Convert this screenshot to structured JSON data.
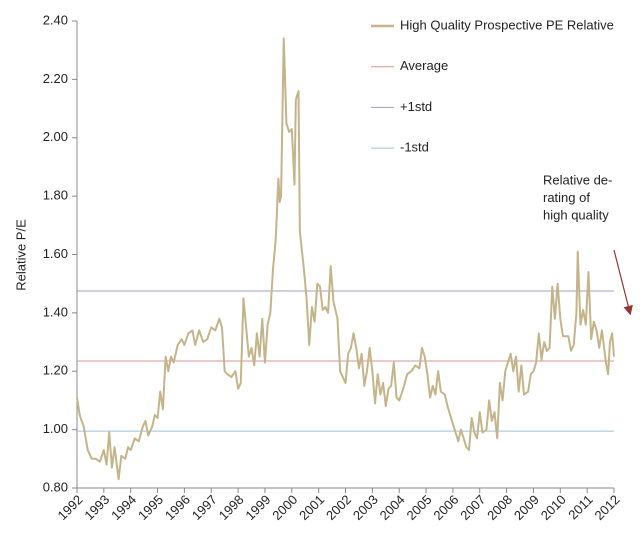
{
  "chart_data": {
    "type": "line",
    "y_label": "Relative P/E",
    "xlim": [
      1992,
      2012
    ],
    "xticks": [
      1992,
      1993,
      1994,
      1995,
      1996,
      1997,
      1998,
      1999,
      2000,
      2001,
      2002,
      2003,
      2004,
      2005,
      2006,
      2007,
      2008,
      2009,
      2010,
      2011,
      2012
    ],
    "ylim": [
      0.8,
      2.4
    ],
    "yticks": [
      {
        "value": 0.8,
        "label": "0.80"
      },
      {
        "value": 1.0,
        "label": "1.00"
      },
      {
        "value": 1.2,
        "label": "1.20"
      },
      {
        "value": 1.4,
        "label": "1.40"
      },
      {
        "value": 1.6,
        "label": "1.60"
      },
      {
        "value": 1.8,
        "label": "1.80"
      },
      {
        "value": 2.0,
        "label": "2.00"
      },
      {
        "value": 2.2,
        "label": "2.20"
      },
      {
        "value": 2.4,
        "label": "2.40"
      }
    ],
    "x": [
      1992.0,
      1992.1,
      1992.25,
      1992.4,
      1992.55,
      1992.7,
      1992.85,
      1993.0,
      1993.1,
      1993.2,
      1993.3,
      1993.4,
      1993.55,
      1993.65,
      1993.8,
      1993.9,
      1994.0,
      1994.15,
      1994.3,
      1994.45,
      1994.55,
      1994.65,
      1994.8,
      1994.9,
      1995.0,
      1995.1,
      1995.2,
      1995.3,
      1995.4,
      1995.5,
      1995.6,
      1995.75,
      1995.9,
      1996.0,
      1996.15,
      1996.3,
      1996.4,
      1996.55,
      1996.7,
      1996.85,
      1997.0,
      1997.15,
      1997.3,
      1997.4,
      1997.5,
      1997.6,
      1997.75,
      1997.9,
      1998.0,
      1998.1,
      1998.2,
      1998.3,
      1998.4,
      1998.5,
      1998.6,
      1998.7,
      1998.8,
      1998.9,
      1999.0,
      1999.1,
      1999.2,
      1999.3,
      1999.4,
      1999.5,
      1999.55,
      1999.6,
      1999.7,
      1999.8,
      1999.9,
      2000.0,
      2000.1,
      2000.15,
      2000.25,
      2000.3,
      2000.45,
      2000.55,
      2000.65,
      2000.75,
      2000.85,
      2000.95,
      2001.05,
      2001.15,
      2001.25,
      2001.35,
      2001.45,
      2001.55,
      2001.7,
      2001.8,
      2001.9,
      2002.0,
      2002.1,
      2002.2,
      2002.3,
      2002.4,
      2002.5,
      2002.6,
      2002.7,
      2002.8,
      2002.9,
      2003.0,
      2003.1,
      2003.2,
      2003.3,
      2003.4,
      2003.5,
      2003.6,
      2003.7,
      2003.8,
      2003.9,
      2004.0,
      2004.15,
      2004.3,
      2004.45,
      2004.6,
      2004.75,
      2004.85,
      2004.95,
      2005.05,
      2005.15,
      2005.25,
      2005.35,
      2005.45,
      2005.55,
      2005.7,
      2005.8,
      2005.9,
      2006.0,
      2006.1,
      2006.2,
      2006.3,
      2006.4,
      2006.5,
      2006.6,
      2006.7,
      2006.8,
      2006.9,
      2007.0,
      2007.1,
      2007.25,
      2007.35,
      2007.45,
      2007.55,
      2007.65,
      2007.75,
      2007.85,
      2007.95,
      2008.05,
      2008.15,
      2008.25,
      2008.35,
      2008.45,
      2008.55,
      2008.65,
      2008.8,
      2008.9,
      2009.0,
      2009.1,
      2009.2,
      2009.3,
      2009.4,
      2009.5,
      2009.6,
      2009.7,
      2009.8,
      2009.9,
      2010.0,
      2010.1,
      2010.2,
      2010.3,
      2010.4,
      2010.5,
      2010.6,
      2010.65,
      2010.75,
      2010.85,
      2010.95,
      2011.05,
      2011.15,
      2011.25,
      2011.35,
      2011.45,
      2011.55,
      2011.7,
      2011.78,
      2011.85,
      2011.93,
      2012.0
    ],
    "series": [
      {
        "name": "High Quality Prospective PE Relative",
        "color": "#c4b48a",
        "values": [
          1.11,
          1.05,
          1.01,
          0.93,
          0.9,
          0.9,
          0.89,
          0.93,
          0.88,
          0.99,
          0.87,
          0.94,
          0.83,
          0.91,
          0.9,
          0.94,
          0.93,
          0.97,
          0.96,
          1.01,
          1.03,
          0.98,
          1.01,
          1.05,
          1.04,
          1.13,
          1.07,
          1.25,
          1.2,
          1.25,
          1.23,
          1.29,
          1.31,
          1.29,
          1.33,
          1.34,
          1.29,
          1.34,
          1.3,
          1.31,
          1.35,
          1.34,
          1.38,
          1.35,
          1.2,
          1.19,
          1.18,
          1.2,
          1.14,
          1.16,
          1.45,
          1.35,
          1.25,
          1.28,
          1.22,
          1.33,
          1.25,
          1.38,
          1.23,
          1.36,
          1.4,
          1.55,
          1.65,
          1.86,
          1.78,
          1.8,
          2.34,
          2.05,
          2.02,
          2.03,
          1.84,
          2.13,
          2.16,
          1.68,
          1.55,
          1.45,
          1.29,
          1.42,
          1.37,
          1.5,
          1.49,
          1.41,
          1.42,
          1.4,
          1.56,
          1.44,
          1.38,
          1.2,
          1.18,
          1.16,
          1.26,
          1.28,
          1.33,
          1.28,
          1.21,
          1.26,
          1.15,
          1.2,
          1.28,
          1.2,
          1.09,
          1.19,
          1.12,
          1.16,
          1.08,
          1.14,
          1.15,
          1.23,
          1.11,
          1.1,
          1.14,
          1.19,
          1.2,
          1.22,
          1.21,
          1.28,
          1.25,
          1.19,
          1.11,
          1.15,
          1.12,
          1.2,
          1.13,
          1.12,
          1.08,
          1.05,
          1.02,
          0.99,
          0.96,
          1.0,
          0.97,
          0.94,
          0.93,
          1.04,
          0.99,
          0.97,
          1.06,
          0.99,
          1.0,
          1.1,
          1.03,
          1.06,
          0.97,
          1.16,
          1.1,
          1.2,
          1.23,
          1.26,
          1.2,
          1.25,
          1.13,
          1.22,
          1.12,
          1.13,
          1.19,
          1.2,
          1.23,
          1.33,
          1.24,
          1.3,
          1.27,
          1.28,
          1.49,
          1.38,
          1.5,
          1.38,
          1.32,
          1.32,
          1.32,
          1.27,
          1.29,
          1.4,
          1.61,
          1.36,
          1.41,
          1.36,
          1.54,
          1.31,
          1.37,
          1.34,
          1.28,
          1.34,
          1.23,
          1.19,
          1.3,
          1.33,
          1.25
        ]
      }
    ],
    "reference_lines": [
      {
        "name": "Average",
        "color": "#d9958f",
        "value": 1.235
      },
      {
        "name": "+1std",
        "color": "#a49bc6",
        "value": 1.475
      },
      {
        "name": "-1std",
        "color": "#9cc3d8",
        "value": 0.995
      }
    ],
    "annotation": [
      "Relative de-",
      "rating of",
      "high quality"
    ]
  }
}
